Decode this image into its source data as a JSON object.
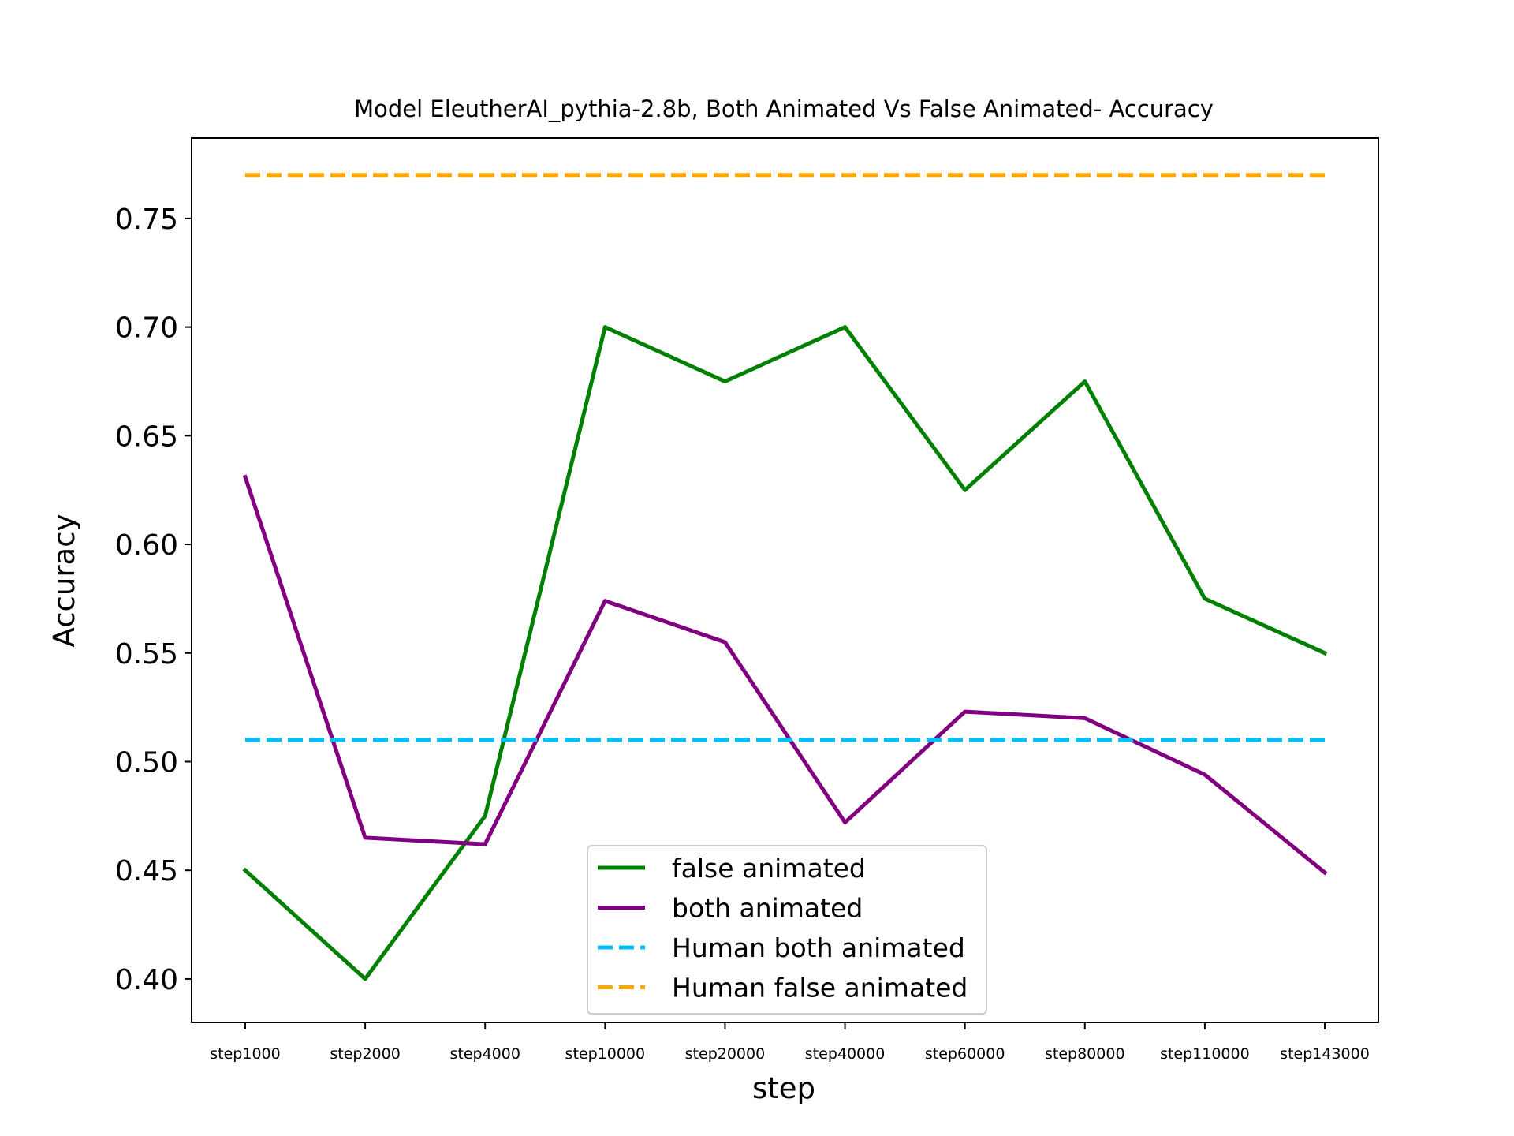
{
  "chart_data": {
    "type": "line",
    "title": "Model EleutherAI_pythia-2.8b, Both Animated Vs False Animated- Accuracy",
    "xlabel": "step",
    "ylabel": "Accuracy",
    "categories": [
      "step1000",
      "step2000",
      "step4000",
      "step10000",
      "step20000",
      "step40000",
      "step60000",
      "step80000",
      "step110000",
      "step143000"
    ],
    "ylim": [
      0.38,
      0.787
    ],
    "yticks": [
      "0.40",
      "0.45",
      "0.50",
      "0.55",
      "0.60",
      "0.65",
      "0.70",
      "0.75"
    ],
    "grid": false,
    "legend_position": "bottom-center",
    "series": [
      {
        "name": "false animated",
        "color": "#008000",
        "style": "solid",
        "values": [
          0.45,
          0.4,
          0.475,
          0.7,
          0.675,
          0.7,
          0.625,
          0.675,
          0.575,
          0.55
        ]
      },
      {
        "name": "both animated",
        "color": "#800080",
        "style": "solid",
        "values": [
          0.631,
          0.465,
          0.462,
          0.574,
          0.555,
          0.472,
          0.523,
          0.52,
          0.494,
          0.449
        ]
      },
      {
        "name": "Human both animated",
        "color": "#00bfff",
        "style": "dashed",
        "values": [
          0.51,
          0.51,
          0.51,
          0.51,
          0.51,
          0.51,
          0.51,
          0.51,
          0.51,
          0.51
        ]
      },
      {
        "name": "Human false animated",
        "color": "#ffa500",
        "style": "dashed",
        "values": [
          0.77,
          0.77,
          0.77,
          0.77,
          0.77,
          0.77,
          0.77,
          0.77,
          0.77,
          0.77
        ]
      }
    ]
  }
}
